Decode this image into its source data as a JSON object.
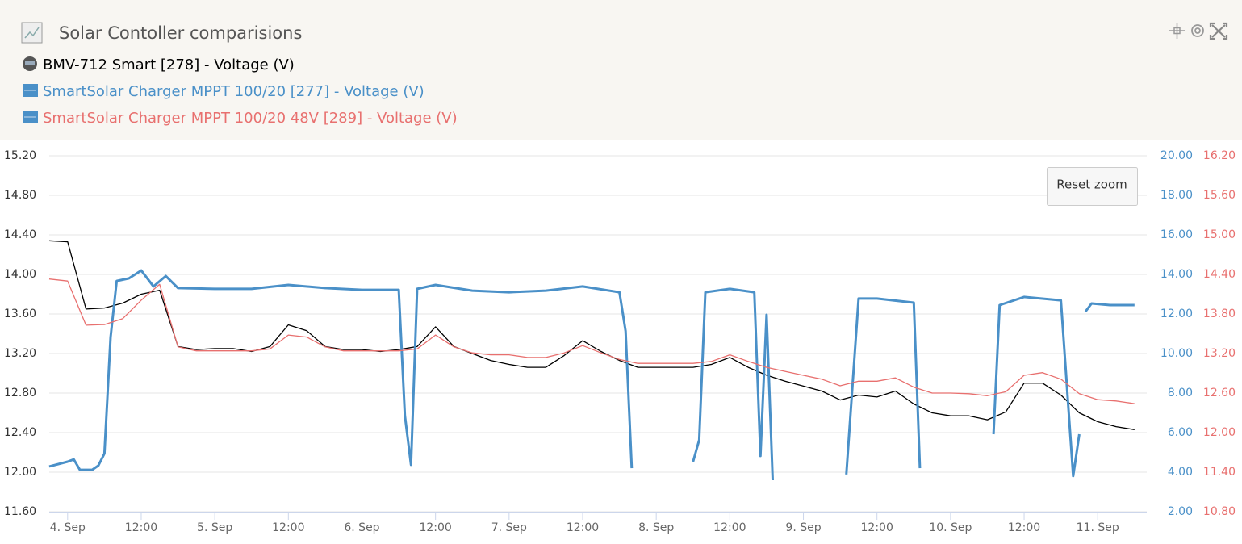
{
  "chart_data": {
    "type": "line",
    "title": "Solar Contoller comparisions",
    "button": "Reset zoom",
    "grid": true,
    "x": [
      "3. Sep 21:00",
      "4. Sep 00:00",
      "4. Sep 03:00",
      "4. Sep 06:00",
      "4. Sep 09:00",
      "4. Sep 12:00",
      "4. Sep 15:00",
      "4. Sep 18:00",
      "4. Sep 21:00",
      "5. Sep 00:00",
      "5. Sep 03:00",
      "5. Sep 06:00",
      "5. Sep 09:00",
      "5. Sep 12:00",
      "5. Sep 15:00",
      "5. Sep 18:00",
      "5. Sep 21:00",
      "6. Sep 00:00",
      "6. Sep 03:00",
      "6. Sep 06:00",
      "6. Sep 09:00",
      "6. Sep 12:00",
      "6. Sep 15:00",
      "6. Sep 18:00",
      "6. Sep 21:00",
      "7. Sep 00:00",
      "7. Sep 03:00",
      "7. Sep 06:00",
      "7. Sep 09:00",
      "7. Sep 12:00",
      "7. Sep 15:00",
      "7. Sep 18:00",
      "7. Sep 21:00",
      "8. Sep 00:00",
      "8. Sep 03:00",
      "8. Sep 06:00",
      "8. Sep 09:00",
      "8. Sep 12:00",
      "8. Sep 15:00",
      "8. Sep 18:00",
      "8. Sep 21:00",
      "9. Sep 00:00",
      "9. Sep 03:00",
      "9. Sep 06:00",
      "9. Sep 09:00",
      "9. Sep 12:00",
      "9. Sep 15:00",
      "9. Sep 18:00",
      "9. Sep 21:00",
      "10. Sep 00:00",
      "10. Sep 03:00",
      "10. Sep 06:00",
      "10. Sep 09:00",
      "10. Sep 12:00",
      "10. Sep 15:00",
      "10. Sep 18:00",
      "10. Sep 21:00",
      "11. Sep 00:00",
      "11. Sep 03:00",
      "11. Sep 06:00"
    ],
    "xlim": [
      "3. Sep 21:00",
      "11. Sep 08:00"
    ],
    "xticks": [
      {
        "value": "4. Sep 00:00",
        "label": "4. Sep"
      },
      {
        "value": "4. Sep 12:00",
        "label": "12:00"
      },
      {
        "value": "5. Sep 00:00",
        "label": "5. Sep"
      },
      {
        "value": "5. Sep 12:00",
        "label": "12:00"
      },
      {
        "value": "6. Sep 00:00",
        "label": "6. Sep"
      },
      {
        "value": "6. Sep 12:00",
        "label": "12:00"
      },
      {
        "value": "7. Sep 00:00",
        "label": "7. Sep"
      },
      {
        "value": "7. Sep 12:00",
        "label": "12:00"
      },
      {
        "value": "8. Sep 00:00",
        "label": "8. Sep"
      },
      {
        "value": "8. Sep 12:00",
        "label": "12:00"
      },
      {
        "value": "9. Sep 00:00",
        "label": "9. Sep"
      },
      {
        "value": "9. Sep 12:00",
        "label": "12:00"
      },
      {
        "value": "10. Sep 00:00",
        "label": "10. Sep"
      },
      {
        "value": "10. Sep 12:00",
        "label": "12:00"
      },
      {
        "value": "11. Sep 00:00",
        "label": "11. Sep"
      }
    ],
    "ylim": [
      11.6,
      15.2
    ],
    "yticks": [
      {
        "value": 11.6,
        "label": "11.60"
      },
      {
        "value": 12,
        "label": "12.00"
      },
      {
        "value": 12.4,
        "label": "12.40"
      },
      {
        "value": 12.8,
        "label": "12.80"
      },
      {
        "value": 13.2,
        "label": "13.20"
      },
      {
        "value": 13.6,
        "label": "13.60"
      },
      {
        "value": 14,
        "label": "14.00"
      },
      {
        "value": 14.4,
        "label": "14.40"
      },
      {
        "value": 14.8,
        "label": "14.80"
      },
      {
        "value": 15.2,
        "label": "15.20"
      }
    ],
    "y2lim": [
      2,
      20
    ],
    "y2ticks": [
      {
        "value": 2,
        "label": "2.00"
      },
      {
        "value": 4,
        "label": "4.00"
      },
      {
        "value": 6,
        "label": "6.00"
      },
      {
        "value": 8,
        "label": "8.00"
      },
      {
        "value": 10,
        "label": "10.00"
      },
      {
        "value": 12,
        "label": "12.00"
      },
      {
        "value": 14,
        "label": "14.00"
      },
      {
        "value": 16,
        "label": "16.00"
      },
      {
        "value": 18,
        "label": "18.00"
      },
      {
        "value": 20,
        "label": "20.00"
      }
    ],
    "y3lim": [
      10.8,
      16.2
    ],
    "y3ticks": [
      {
        "value": 10.8,
        "label": "10.80"
      },
      {
        "value": 11.4,
        "label": "11.40"
      },
      {
        "value": 12,
        "label": "12.00"
      },
      {
        "value": 12.6,
        "label": "12.60"
      },
      {
        "value": 13.2,
        "label": "13.20"
      },
      {
        "value": 13.8,
        "label": "13.80"
      },
      {
        "value": 14.4,
        "label": "14.40"
      },
      {
        "value": 15,
        "label": "15.00"
      },
      {
        "value": 15.6,
        "label": "15.60"
      },
      {
        "value": 16.2,
        "label": "16.20"
      }
    ],
    "series": [
      {
        "name": "BMV-712 Smart [278] - Voltage (V)",
        "color": "#000000",
        "axis": "y",
        "values": [
          14.34,
          14.33,
          13.65,
          13.66,
          13.71,
          13.8,
          13.84,
          13.27,
          13.24,
          13.25,
          13.25,
          13.22,
          13.27,
          13.49,
          13.43,
          13.27,
          13.24,
          13.24,
          13.22,
          13.24,
          13.27,
          13.47,
          13.27,
          13.2,
          13.13,
          13.09,
          13.06,
          13.06,
          13.18,
          13.33,
          13.22,
          13.13,
          13.06,
          13.06,
          13.06,
          13.06,
          13.09,
          13.16,
          13.06,
          12.98,
          12.92,
          12.87,
          12.82,
          12.73,
          12.78,
          12.76,
          12.82,
          12.69,
          12.6,
          12.57,
          12.57,
          12.53,
          12.61,
          12.9,
          12.9,
          12.78,
          12.6,
          12.51,
          12.46,
          12.43
        ]
      },
      {
        "name": "SmartSolar Charger MPPT 100/20 [277] - Voltage (V)",
        "color": "#4a90c8",
        "axis": "y2",
        "x": [
          "3. Sep 21:00",
          "4. Sep 00:00",
          "4. Sep 01:00",
          "4. Sep 02:00",
          "4. Sep 04:00",
          "4. Sep 05:00",
          "4. Sep 06:00",
          "4. Sep 07:00",
          "4. Sep 08:00",
          "4. Sep 10:00",
          "4. Sep 12:00",
          "4. Sep 14:00",
          "4. Sep 16:00",
          "4. Sep 18:00",
          "5. Sep 00:00",
          "5. Sep 06:00",
          "5. Sep 12:00",
          "5. Sep 18:00",
          "6. Sep 00:00",
          "6. Sep 06:00",
          "6. Sep 07:00",
          "6. Sep 08:00",
          "6. Sep 09:00",
          "6. Sep 12:00",
          "6. Sep 18:00",
          "7. Sep 00:00",
          "7. Sep 06:00",
          "7. Sep 12:00",
          "7. Sep 18:00",
          "7. Sep 19:00",
          "7. Sep 20:00",
          "7. Sep 22:00",
          "8. Sep 06:00",
          "8. Sep 07:00",
          "8. Sep 08:00",
          "8. Sep 12:00",
          "8. Sep 16:00",
          "8. Sep 17:00",
          "8. Sep 18:00",
          "8. Sep 19:00",
          "8. Sep 21:00",
          "9. Sep 07:00",
          "9. Sep 09:00",
          "9. Sep 12:00",
          "9. Sep 18:00",
          "9. Sep 19:00",
          "9. Sep 21:00",
          "10. Sep 07:00",
          "10. Sep 08:00",
          "10. Sep 12:00",
          "10. Sep 18:00",
          "10. Sep 20:00",
          "10. Sep 21:00",
          "10. Sep 21:30",
          "10. Sep 22:00",
          "10. Sep 23:00",
          "11. Sep 02:00",
          "11. Sep 06:00"
        ],
        "values": [
          4.29,
          4.53,
          4.65,
          4.12,
          4.12,
          4.33,
          4.94,
          10.82,
          13.67,
          13.8,
          14.2,
          13.39,
          13.92,
          13.31,
          13.27,
          13.27,
          13.47,
          13.31,
          13.22,
          13.22,
          6.86,
          4.37,
          13.27,
          13.47,
          13.18,
          13.1,
          13.18,
          13.39,
          13.1,
          11.14,
          4.2,
          null,
          4.53,
          5.63,
          13.1,
          13.27,
          13.1,
          4.82,
          11.96,
          3.59,
          null,
          3.88,
          12.78,
          12.78,
          12.57,
          4.2,
          null,
          5.92,
          12.45,
          12.86,
          12.69,
          3.8,
          5.92,
          null,
          12.12,
          12.53,
          12.45,
          12.45
        ]
      },
      {
        "name": "SmartSolar Charger MPPT 100/20 48V [289] - Voltage (V)",
        "color": "#e8706f",
        "axis": "y3",
        "values": [
          14.33,
          14.3,
          13.63,
          13.64,
          13.73,
          14.01,
          14.25,
          13.3,
          13.24,
          13.24,
          13.24,
          13.24,
          13.27,
          13.48,
          13.45,
          13.3,
          13.24,
          13.24,
          13.24,
          13.24,
          13.27,
          13.48,
          13.3,
          13.21,
          13.18,
          13.18,
          13.14,
          13.14,
          13.21,
          13.32,
          13.21,
          13.11,
          13.05,
          13.05,
          13.05,
          13.05,
          13.08,
          13.18,
          13.08,
          12.99,
          12.93,
          12.87,
          12.81,
          12.71,
          12.78,
          12.78,
          12.83,
          12.69,
          12.6,
          12.6,
          12.59,
          12.56,
          12.62,
          12.87,
          12.91,
          12.81,
          12.59,
          12.5,
          12.48,
          12.44
        ]
      }
    ]
  }
}
